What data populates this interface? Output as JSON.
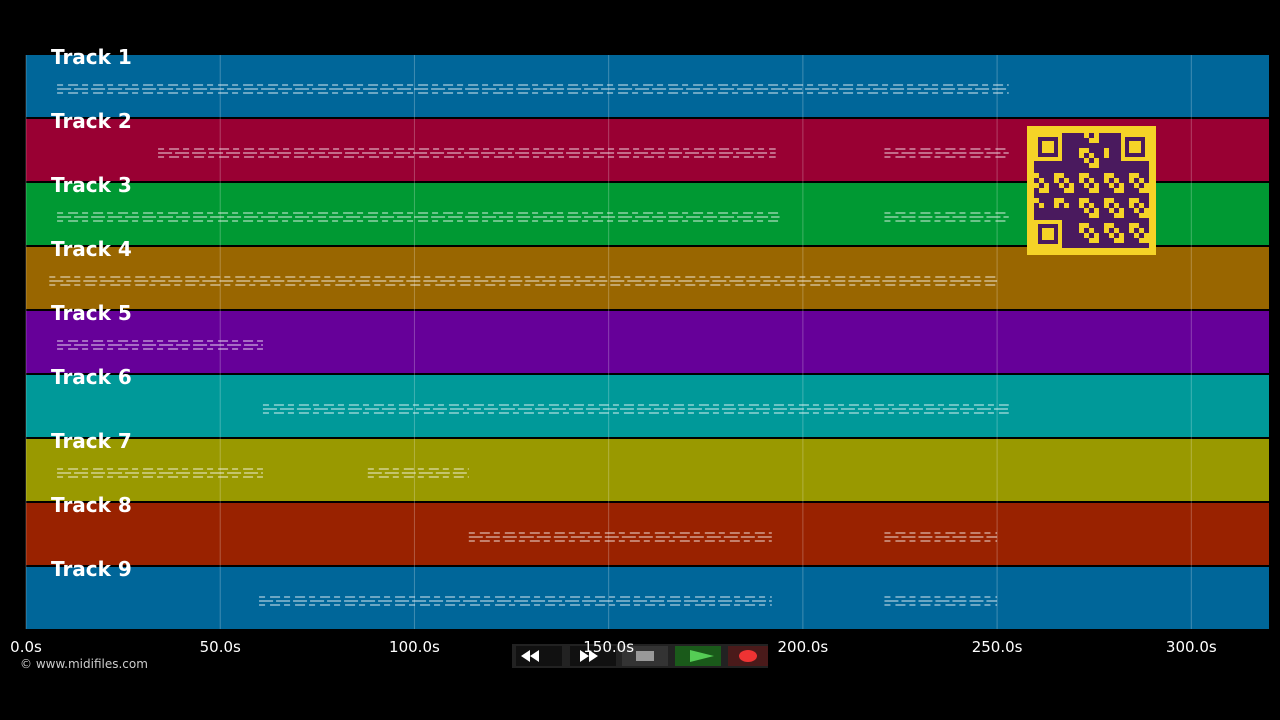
{
  "tracks": [
    {
      "name": "Track 1",
      "color": "#006699",
      "spans": [
        [
          8,
          253
        ]
      ]
    },
    {
      "name": "Track 2",
      "color": "#990033",
      "spans": [
        [
          34,
          193
        ],
        [
          221,
          253
        ]
      ]
    },
    {
      "name": "Track 3",
      "color": "#009933",
      "spans": [
        [
          8,
          194
        ],
        [
          221,
          253
        ]
      ]
    },
    {
      "name": "Track 4",
      "color": "#996600",
      "spans": [
        [
          6,
          250
        ]
      ]
    },
    {
      "name": "Track 5",
      "color": "#660099",
      "spans": [
        [
          8,
          61
        ]
      ]
    },
    {
      "name": "Track 6",
      "color": "#009999",
      "spans": [
        [
          61,
          253
        ]
      ]
    },
    {
      "name": "Track 7",
      "color": "#999900",
      "spans": [
        [
          8,
          61
        ],
        [
          88,
          114
        ]
      ]
    },
    {
      "name": "Track 8",
      "color": "#992200",
      "spans": [
        [
          114,
          192
        ],
        [
          221,
          250
        ]
      ]
    },
    {
      "name": "Track 9",
      "color": "#006699",
      "spans": [
        [
          60,
          192
        ],
        [
          221,
          250
        ]
      ]
    }
  ],
  "time_axis": {
    "xlim": [
      0,
      320
    ],
    "ticks": [
      {
        "value": 0,
        "label": "0.0s"
      },
      {
        "value": 50,
        "label": "50.0s"
      },
      {
        "value": 100,
        "label": "100.0s"
      },
      {
        "value": 150,
        "label": "150.0s"
      },
      {
        "value": 200,
        "label": "200.0s"
      },
      {
        "value": 250,
        "label": "250.0s"
      },
      {
        "value": 300,
        "label": "300.0s"
      }
    ]
  },
  "copyright": "© www.midifiles.com"
}
